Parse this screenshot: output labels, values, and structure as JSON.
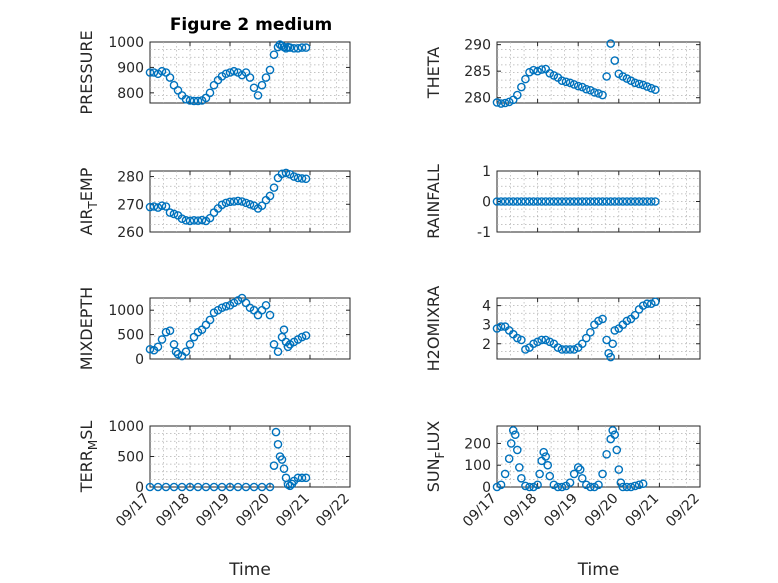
{
  "figure": {
    "title": "Figure 2 medium"
  },
  "colors": {
    "marker": "#0072BD",
    "axis": "#262626"
  },
  "chart_data": [
    {
      "type": "scatter",
      "ylabel": "PRESSURE",
      "ylim": [
        760,
        1000
      ],
      "yticks": [
        "800",
        "900",
        "1000"
      ],
      "ytick_values": [
        800,
        900,
        1000
      ],
      "xlim": [
        0,
        5
      ],
      "grid": true,
      "x": [
        0.0,
        0.1,
        0.2,
        0.3,
        0.4,
        0.5,
        0.6,
        0.7,
        0.8,
        0.9,
        1.0,
        1.1,
        1.2,
        1.3,
        1.4,
        1.5,
        1.6,
        1.7,
        1.8,
        1.9,
        2.0,
        2.1,
        2.2,
        2.3,
        2.4,
        2.5,
        2.6,
        2.7,
        2.8,
        2.9,
        3.0,
        3.1,
        3.2,
        3.25,
        3.3,
        3.35,
        3.4,
        3.45,
        3.5,
        3.6,
        3.7,
        3.8,
        3.9
      ],
      "y": [
        880,
        880,
        875,
        885,
        880,
        860,
        830,
        810,
        790,
        775,
        770,
        768,
        768,
        770,
        780,
        800,
        830,
        850,
        865,
        875,
        880,
        885,
        880,
        870,
        880,
        860,
        820,
        790,
        830,
        860,
        890,
        950,
        980,
        990,
        985,
        980,
        975,
        980,
        978,
        975,
        975,
        978,
        978
      ]
    },
    {
      "type": "scatter",
      "ylabel": "THETA",
      "ylim": [
        279,
        290.5
      ],
      "yticks": [
        "280",
        "285",
        "290"
      ],
      "ytick_values": [
        280,
        285,
        290
      ],
      "xlim": [
        0,
        5
      ],
      "grid": true,
      "x": [
        0.0,
        0.1,
        0.2,
        0.3,
        0.4,
        0.5,
        0.6,
        0.7,
        0.8,
        0.9,
        1.0,
        1.1,
        1.2,
        1.3,
        1.4,
        1.5,
        1.6,
        1.7,
        1.8,
        1.9,
        2.0,
        2.1,
        2.2,
        2.3,
        2.4,
        2.5,
        2.6,
        2.7,
        2.8,
        2.9,
        3.0,
        3.1,
        3.2,
        3.3,
        3.4,
        3.5,
        3.6,
        3.7,
        3.8,
        3.9
      ],
      "y": [
        279.1,
        278.9,
        279.0,
        279.2,
        279.6,
        280.5,
        282.0,
        283.5,
        284.8,
        285.2,
        285.0,
        285.3,
        285.4,
        284.6,
        284.2,
        283.8,
        283.2,
        283.0,
        282.8,
        282.5,
        282.2,
        282.0,
        281.6,
        281.4,
        281.0,
        280.8,
        280.5,
        284.0,
        290.2,
        287.0,
        284.5,
        284.0,
        283.6,
        283.2,
        282.8,
        282.6,
        282.4,
        282.1,
        281.8,
        281.5
      ]
    },
    {
      "type": "scatter",
      "ylabel": "AIR_TEMP",
      "ylabel_main": "AIR",
      "ylabel_sub": "T",
      "ylabel_rest": "EMP",
      "ylim": [
        260,
        282
      ],
      "yticks": [
        "260",
        "270",
        "280"
      ],
      "ytick_values": [
        260,
        270,
        280
      ],
      "xlim": [
        0,
        5
      ],
      "grid": true,
      "x": [
        0.0,
        0.1,
        0.2,
        0.3,
        0.4,
        0.5,
        0.6,
        0.7,
        0.8,
        0.9,
        1.0,
        1.1,
        1.2,
        1.3,
        1.4,
        1.5,
        1.6,
        1.7,
        1.8,
        1.9,
        2.0,
        2.1,
        2.2,
        2.3,
        2.4,
        2.5,
        2.6,
        2.7,
        2.8,
        2.9,
        3.0,
        3.1,
        3.2,
        3.3,
        3.4,
        3.5,
        3.6,
        3.7,
        3.8,
        3.9
      ],
      "y": [
        269.0,
        269.2,
        268.8,
        269.5,
        269.2,
        267.0,
        266.5,
        266.0,
        264.8,
        264.2,
        264.0,
        264.2,
        264.1,
        264.3,
        264.0,
        265.0,
        267.0,
        268.5,
        269.8,
        270.5,
        270.9,
        271.0,
        271.2,
        271.0,
        270.5,
        270.0,
        269.5,
        268.5,
        269.5,
        271.5,
        273.0,
        276.0,
        279.5,
        281.0,
        281.3,
        280.8,
        280.0,
        279.5,
        279.3,
        279.2
      ]
    },
    {
      "type": "scatter",
      "ylabel": "RAINFALL",
      "ylim": [
        -1,
        1
      ],
      "yticks": [
        "-1",
        "0",
        "1"
      ],
      "ytick_values": [
        -1,
        0,
        1
      ],
      "xlim": [
        0,
        5
      ],
      "grid": true,
      "x": [
        0.0,
        0.1,
        0.2,
        0.3,
        0.4,
        0.5,
        0.6,
        0.7,
        0.8,
        0.9,
        1.0,
        1.1,
        1.2,
        1.3,
        1.4,
        1.5,
        1.6,
        1.7,
        1.8,
        1.9,
        2.0,
        2.1,
        2.2,
        2.3,
        2.4,
        2.5,
        2.6,
        2.7,
        2.8,
        2.9,
        3.0,
        3.1,
        3.2,
        3.3,
        3.4,
        3.5,
        3.6,
        3.7,
        3.8,
        3.9
      ],
      "y": [
        0,
        0,
        0,
        0,
        0,
        0,
        0,
        0,
        0,
        0,
        0,
        0,
        0,
        0,
        0,
        0,
        0,
        0,
        0,
        0,
        0,
        0,
        0,
        0,
        0,
        0,
        0,
        0,
        0,
        0,
        0,
        0,
        0,
        0,
        0,
        0,
        0,
        0,
        0,
        0
      ]
    },
    {
      "type": "scatter",
      "ylabel": "MIXDEPTH",
      "ylim": [
        0,
        1250
      ],
      "yticks": [
        "0",
        "500",
        "1000"
      ],
      "ytick_values": [
        0,
        500,
        1000
      ],
      "xlim": [
        0,
        5
      ],
      "grid": true,
      "x": [
        0.0,
        0.1,
        0.2,
        0.3,
        0.4,
        0.5,
        0.6,
        0.65,
        0.7,
        0.8,
        0.9,
        1.0,
        1.1,
        1.2,
        1.3,
        1.4,
        1.5,
        1.6,
        1.7,
        1.8,
        1.9,
        2.0,
        2.1,
        2.2,
        2.3,
        2.4,
        2.5,
        2.6,
        2.7,
        2.8,
        2.9,
        3.0,
        3.1,
        3.2,
        3.3,
        3.35,
        3.4,
        3.45,
        3.5,
        3.6,
        3.7,
        3.8,
        3.9
      ],
      "y": [
        200,
        180,
        250,
        400,
        550,
        580,
        300,
        150,
        100,
        60,
        150,
        300,
        450,
        550,
        600,
        700,
        800,
        950,
        1000,
        1050,
        1080,
        1100,
        1150,
        1200,
        1250,
        1150,
        1050,
        1000,
        900,
        1000,
        1100,
        900,
        300,
        150,
        450,
        600,
        350,
        250,
        300,
        350,
        400,
        450,
        480
      ]
    },
    {
      "type": "scatter",
      "ylabel": "H2OMIXRA",
      "ylim": [
        1.2,
        4.4
      ],
      "yticks": [
        "2",
        "3",
        "4"
      ],
      "ytick_values": [
        2,
        3,
        4
      ],
      "xlim": [
        0,
        5
      ],
      "grid": true,
      "x": [
        0.0,
        0.1,
        0.2,
        0.3,
        0.4,
        0.5,
        0.6,
        0.7,
        0.8,
        0.9,
        1.0,
        1.1,
        1.2,
        1.3,
        1.4,
        1.5,
        1.6,
        1.7,
        1.8,
        1.9,
        2.0,
        2.1,
        2.2,
        2.3,
        2.4,
        2.5,
        2.6,
        2.7,
        2.75,
        2.8,
        2.85,
        2.9,
        3.0,
        3.1,
        3.2,
        3.3,
        3.4,
        3.5,
        3.6,
        3.7,
        3.8,
        3.9
      ],
      "y": [
        2.8,
        2.9,
        2.9,
        2.7,
        2.5,
        2.3,
        2.2,
        1.7,
        1.8,
        2.0,
        2.1,
        2.2,
        2.2,
        2.1,
        2.0,
        1.8,
        1.7,
        1.7,
        1.7,
        1.7,
        1.8,
        2.0,
        2.3,
        2.6,
        3.0,
        3.2,
        3.3,
        2.2,
        1.5,
        1.3,
        2.0,
        2.7,
        2.8,
        3.0,
        3.2,
        3.3,
        3.5,
        3.8,
        4.0,
        4.1,
        4.1,
        4.2
      ]
    },
    {
      "type": "scatter",
      "ylabel": "TERR_MSL",
      "ylabel_main": "TERR",
      "ylabel_sub": "M",
      "ylabel_rest": "SL",
      "ylim": [
        0,
        1000
      ],
      "yticks": [
        "0",
        "500",
        "1000"
      ],
      "ytick_values": [
        0,
        500,
        1000
      ],
      "xticks": [
        "09/17",
        "09/18",
        "09/19",
        "09/20",
        "09/21",
        "09/22"
      ],
      "xtick_values": [
        0,
        1,
        2,
        3,
        4,
        5
      ],
      "xlabel": "Time",
      "xlim": [
        0,
        5
      ],
      "grid": true,
      "x": [
        0.0,
        0.2,
        0.4,
        0.6,
        0.8,
        1.0,
        1.2,
        1.4,
        1.6,
        1.8,
        2.0,
        2.2,
        2.4,
        2.6,
        2.8,
        3.0,
        3.1,
        3.15,
        3.2,
        3.25,
        3.3,
        3.35,
        3.4,
        3.45,
        3.5,
        3.55,
        3.6,
        3.7,
        3.8,
        3.9
      ],
      "y": [
        0,
        0,
        0,
        0,
        0,
        0,
        0,
        0,
        0,
        0,
        0,
        0,
        0,
        0,
        0,
        0,
        350,
        900,
        700,
        500,
        450,
        300,
        150,
        40,
        20,
        50,
        100,
        150,
        150,
        150
      ]
    },
    {
      "type": "scatter",
      "ylabel": "SUN_FLUX",
      "ylabel_main": "SUN",
      "ylabel_sub": "F",
      "ylabel_rest": "LUX",
      "ylim": [
        0,
        280
      ],
      "yticks": [
        "0",
        "100",
        "200"
      ],
      "ytick_values": [
        0,
        100,
        200
      ],
      "xticks": [
        "09/17",
        "09/18",
        "09/19",
        "09/20",
        "09/21",
        "09/22"
      ],
      "xtick_values": [
        0,
        1,
        2,
        3,
        4,
        5
      ],
      "xlabel": "Time",
      "xlim": [
        0,
        5
      ],
      "grid": true,
      "x": [
        0.0,
        0.1,
        0.2,
        0.3,
        0.35,
        0.4,
        0.45,
        0.5,
        0.55,
        0.6,
        0.7,
        0.8,
        0.9,
        1.0,
        1.05,
        1.1,
        1.15,
        1.2,
        1.25,
        1.3,
        1.4,
        1.5,
        1.6,
        1.7,
        1.8,
        1.9,
        2.0,
        2.05,
        2.1,
        2.2,
        2.3,
        2.4,
        2.5,
        2.6,
        2.7,
        2.8,
        2.85,
        2.9,
        2.95,
        3.0,
        3.05,
        3.1,
        3.2,
        3.3,
        3.4,
        3.5,
        3.6
      ],
      "y": [
        0,
        10,
        60,
        130,
        200,
        260,
        240,
        170,
        90,
        40,
        5,
        0,
        0,
        10,
        60,
        120,
        160,
        140,
        100,
        50,
        10,
        0,
        0,
        5,
        20,
        60,
        90,
        80,
        40,
        10,
        0,
        0,
        10,
        60,
        150,
        220,
        260,
        240,
        170,
        80,
        20,
        0,
        0,
        0,
        5,
        10,
        15
      ]
    }
  ]
}
